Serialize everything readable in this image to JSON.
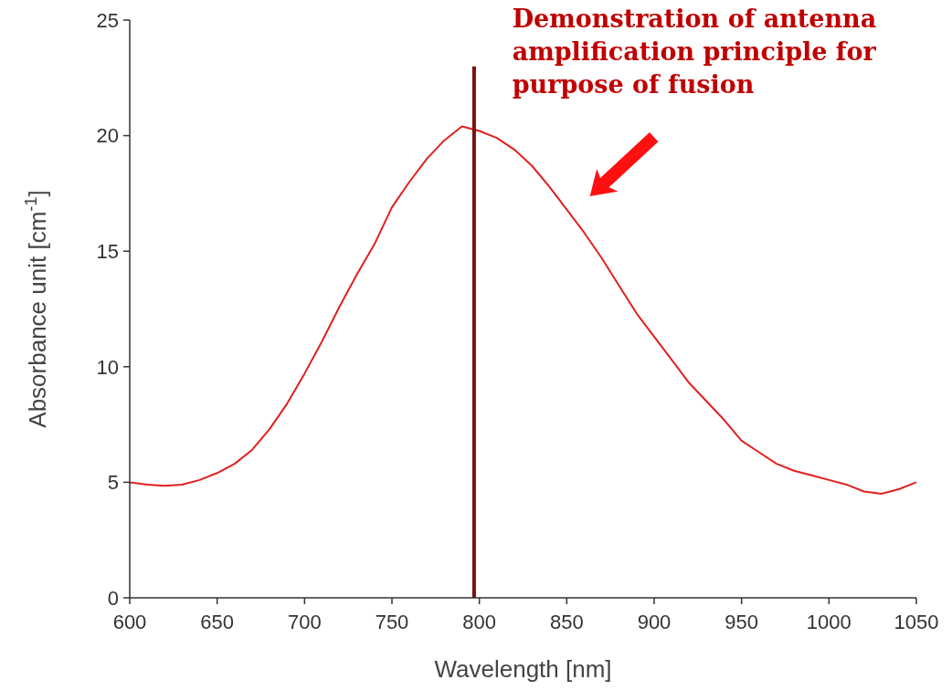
{
  "chart_data": {
    "type": "line",
    "xlabel": "Wavelength [nm]",
    "ylabel": "Absorbance unit [cm$^{-1}$]",
    "xlim": [
      600,
      1050
    ],
    "xticks": [
      600,
      650,
      700,
      750,
      800,
      850,
      900,
      950,
      1000,
      1050
    ],
    "ylim": [
      0,
      25
    ],
    "yticks": [
      0,
      5,
      10,
      15,
      20,
      25
    ],
    "grid": false,
    "marker": "none",
    "line_style": "solid",
    "series": [
      {
        "color": "#e02020",
        "x": [
          600,
          610,
          620,
          630,
          640,
          650,
          660,
          670,
          680,
          690,
          700,
          710,
          720,
          730,
          740,
          750,
          760,
          770,
          780,
          790,
          800,
          810,
          820,
          830,
          840,
          850,
          860,
          870,
          880,
          890,
          900,
          910,
          920,
          930,
          940,
          950,
          960,
          970,
          980,
          990,
          1000,
          1010,
          1020,
          1030,
          1040,
          1050
        ],
        "values": [
          5.0,
          4.9,
          4.85,
          4.9,
          5.1,
          5.4,
          5.8,
          6.4,
          7.3,
          8.4,
          9.7,
          11.1,
          12.6,
          14.0,
          15.3,
          16.9,
          18.0,
          19.0,
          19.8,
          20.4,
          20.2,
          19.9,
          19.4,
          18.7,
          17.8,
          16.8,
          15.8,
          14.7,
          13.5,
          12.3,
          11.3,
          10.3,
          9.3,
          8.5,
          7.7,
          6.8,
          6.3,
          5.8,
          5.5,
          5.3,
          5.1,
          4.9,
          4.6,
          4.5,
          4.7,
          5.0
        ]
      },
      {
        "color": "#7a1010",
        "x": [
          797,
          797
        ],
        "values": [
          0,
          23
        ]
      }
    ],
    "annotations": [
      "Demonstration of antenna amplification principle for purpose of fusion"
    ]
  }
}
